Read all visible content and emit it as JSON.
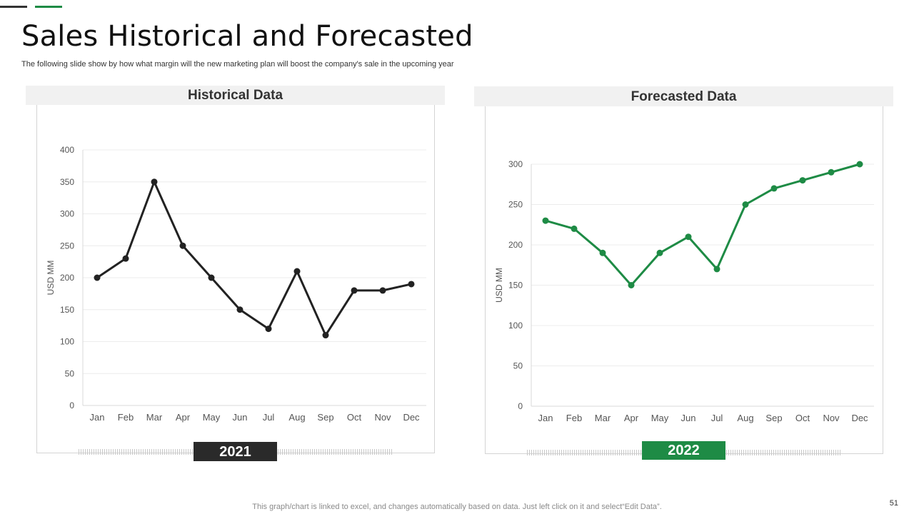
{
  "slide": {
    "title": "Sales Historical and Forecasted",
    "subtitle": "The following slide show by how what margin will the new marketing plan will boost the company's sale in the upcoming year",
    "footer_note": "This graph/chart is linked to excel,  and changes automatically based on data. Just left click on it and select“Edit Data”.",
    "page_number": "51"
  },
  "colors": {
    "dark": "#222222",
    "green": "#1e8b45",
    "grid": "#ececec",
    "axis_text": "#555555"
  },
  "panels": [
    {
      "header": "Historical Data",
      "year": "2021"
    },
    {
      "header": "Forecasted Data",
      "year": "2022"
    }
  ],
  "chart_data": [
    {
      "type": "line",
      "title": "Historical Data",
      "xlabel": "",
      "ylabel": "USD MM",
      "categories": [
        "Jan",
        "Feb",
        "Mar",
        "Apr",
        "May",
        "Jun",
        "Jul",
        "Aug",
        "Sep",
        "Oct",
        "Nov",
        "Dec"
      ],
      "values": [
        200,
        230,
        350,
        250,
        200,
        150,
        120,
        210,
        110,
        180,
        180,
        190
      ],
      "ylim": [
        0,
        400
      ],
      "yticks": [
        0,
        50,
        100,
        150,
        200,
        250,
        300,
        350,
        400
      ],
      "grid": true,
      "color": "#222222"
    },
    {
      "type": "line",
      "title": "Forecasted Data",
      "xlabel": "",
      "ylabel": "USD MM",
      "categories": [
        "Jan",
        "Feb",
        "Mar",
        "Apr",
        "May",
        "Jun",
        "Jul",
        "Aug",
        "Sep",
        "Oct",
        "Nov",
        "Dec"
      ],
      "values": [
        230,
        220,
        190,
        150,
        190,
        210,
        170,
        250,
        270,
        280,
        290,
        300
      ],
      "ylim": [
        0,
        300
      ],
      "yticks": [
        0,
        50,
        100,
        150,
        200,
        250,
        300
      ],
      "grid": true,
      "color": "#1e8b45"
    }
  ]
}
